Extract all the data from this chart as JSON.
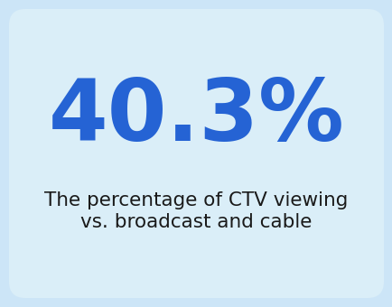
{
  "main_text": "40.3%",
  "sub_text_line1": "The percentage of CTV viewing",
  "sub_text_line2": "vs. broadcast and cable",
  "main_color": "#2563d4",
  "sub_color": "#1a1a1a",
  "background_color": "#cce5f7",
  "card_color": "#daeef8",
  "main_fontsize": 68,
  "sub_fontsize": 15.5,
  "fig_width": 4.35,
  "fig_height": 3.4
}
